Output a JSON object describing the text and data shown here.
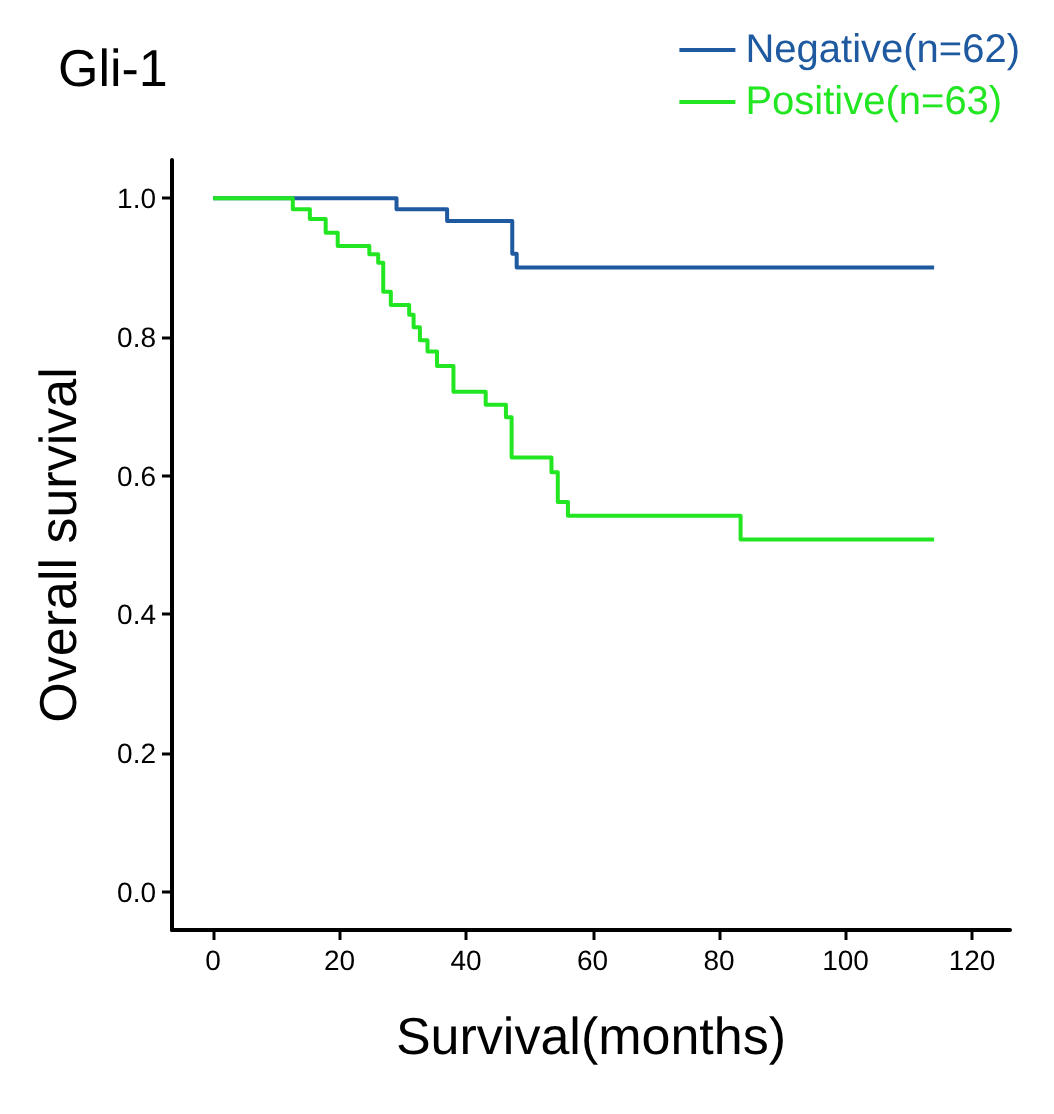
{
  "chart_data": {
    "type": "step",
    "title": "Gli-1",
    "xlabel": "Survival(months)",
    "ylabel": "Overall survival",
    "xlim": [
      -6.5,
      126
    ],
    "ylim": [
      -0.055,
      1.055
    ],
    "xticks": [
      0,
      20,
      40,
      60,
      80,
      100,
      120
    ],
    "yticks": [
      {
        "value": 0,
        "label": "0.0"
      },
      {
        "value": 0.2,
        "label": "0.2"
      },
      {
        "value": 0.4,
        "label": "0.4"
      },
      {
        "value": 0.6,
        "label": "0.6"
      },
      {
        "value": 0.8,
        "label": "0.8"
      },
      {
        "value": 1,
        "label": "1.0"
      }
    ],
    "grid": false,
    "legend": "top right",
    "marker": "none",
    "line_style": "solid",
    "series": [
      {
        "name": "Negative(n=62)",
        "color": "#1f5aa0",
        "x": [
          0,
          29,
          37,
          47.3,
          48,
          114
        ],
        "values": [
          1,
          0.984,
          0.967,
          0.92,
          0.9,
          0.9
        ]
      },
      {
        "name": "Positive(n=63)",
        "color": "#22e622",
        "x": [
          0,
          12.6,
          15.3,
          17.8,
          19.7,
          24.7,
          26.1,
          26.9,
          28.1,
          31,
          31.7,
          32.7,
          33.9,
          35.4,
          38,
          43.1,
          46.3,
          47.2,
          53.5,
          54.5,
          56.1,
          83.4,
          114
        ],
        "values": [
          1,
          0.984,
          0.97,
          0.95,
          0.931,
          0.919,
          0.907,
          0.865,
          0.846,
          0.832,
          0.814,
          0.795,
          0.779,
          0.758,
          0.721,
          0.702,
          0.684,
          0.626,
          0.605,
          0.562,
          0.542,
          0.508,
          0.508
        ]
      }
    ]
  }
}
